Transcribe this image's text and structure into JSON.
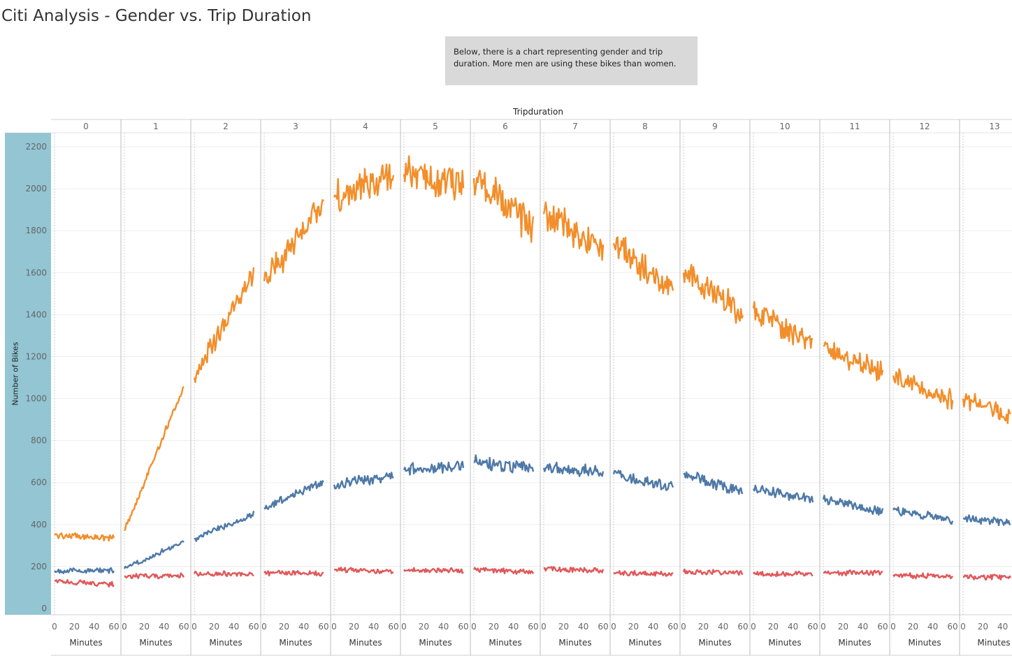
{
  "page": {
    "title": "Citi Analysis - Gender vs. Trip Duration",
    "note": "Below, there is a chart representing gender and trip duration. More men are using these bikes than women."
  },
  "chart_data": {
    "type": "line",
    "column_axis_title": "Tripduration",
    "ylabel": "Number of Bikes",
    "xlabel": "Minutes",
    "ylim": [
      0,
      2250
    ],
    "yticks": [
      0,
      200,
      400,
      600,
      800,
      1000,
      1200,
      1400,
      1600,
      1800,
      2000,
      2200
    ],
    "xticks": [
      0,
      20,
      40,
      60
    ],
    "panels": [
      "0",
      "1",
      "2",
      "3",
      "4",
      "5",
      "6",
      "7",
      "8",
      "9",
      "10",
      "11",
      "12",
      "13"
    ],
    "series": [
      {
        "color": "#f28e2b",
        "start": [
          350,
          370,
          1100,
          1560,
          1960,
          2070,
          2050,
          1880,
          1740,
          1600,
          1430,
          1250,
          1110,
          1000
        ],
        "end": [
          335,
          1060,
          1600,
          1920,
          2060,
          2020,
          1820,
          1710,
          1510,
          1410,
          1250,
          1120,
          990,
          900
        ]
      },
      {
        "color": "#4e79a7",
        "start": [
          180,
          190,
          330,
          480,
          590,
          660,
          700,
          670,
          640,
          640,
          570,
          520,
          470,
          430
        ],
        "end": [
          180,
          320,
          450,
          600,
          630,
          680,
          670,
          650,
          580,
          560,
          520,
          460,
          420,
          405
        ]
      },
      {
        "color": "#e15759",
        "start": [
          130,
          155,
          165,
          170,
          185,
          185,
          185,
          190,
          170,
          175,
          165,
          170,
          160,
          150
        ],
        "end": [
          115,
          155,
          165,
          165,
          175,
          180,
          175,
          180,
          165,
          170,
          165,
          170,
          150,
          150
        ]
      }
    ]
  }
}
